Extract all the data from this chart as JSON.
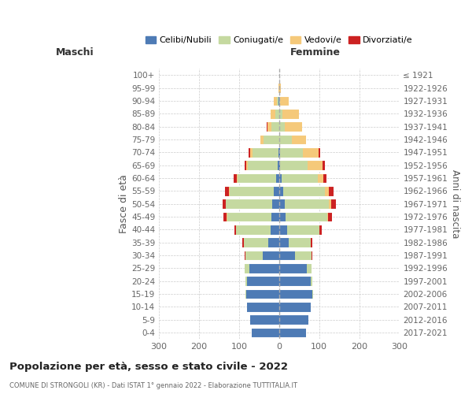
{
  "age_groups": [
    "0-4",
    "5-9",
    "10-14",
    "15-19",
    "20-24",
    "25-29",
    "30-34",
    "35-39",
    "40-44",
    "45-49",
    "50-54",
    "55-59",
    "60-64",
    "65-69",
    "70-74",
    "75-79",
    "80-84",
    "85-89",
    "90-94",
    "95-99",
    "100+"
  ],
  "birth_years": [
    "2017-2021",
    "2012-2016",
    "2007-2011",
    "2002-2006",
    "1997-2001",
    "1992-1996",
    "1987-1991",
    "1982-1986",
    "1977-1981",
    "1972-1976",
    "1967-1971",
    "1962-1966",
    "1957-1961",
    "1952-1956",
    "1947-1951",
    "1942-1946",
    "1937-1941",
    "1932-1936",
    "1927-1931",
    "1922-1926",
    "≤ 1921"
  ],
  "male": {
    "celibi": [
      68,
      72,
      80,
      82,
      80,
      75,
      40,
      28,
      22,
      20,
      18,
      14,
      8,
      4,
      2,
      0,
      0,
      0,
      1,
      0,
      0
    ],
    "coniugati": [
      0,
      0,
      0,
      2,
      5,
      12,
      45,
      60,
      85,
      110,
      115,
      110,
      95,
      75,
      65,
      38,
      20,
      10,
      4,
      0,
      0
    ],
    "vedovi": [
      0,
      0,
      0,
      0,
      0,
      0,
      0,
      0,
      0,
      1,
      1,
      2,
      2,
      3,
      5,
      8,
      10,
      12,
      8,
      2,
      0
    ],
    "divorziati": [
      0,
      0,
      0,
      0,
      0,
      0,
      2,
      4,
      4,
      8,
      8,
      10,
      8,
      5,
      5,
      0,
      2,
      0,
      0,
      0,
      0
    ]
  },
  "female": {
    "nubili": [
      68,
      72,
      78,
      82,
      78,
      70,
      40,
      24,
      20,
      16,
      14,
      10,
      6,
      3,
      2,
      0,
      0,
      0,
      1,
      0,
      0
    ],
    "coniugate": [
      0,
      0,
      0,
      2,
      5,
      10,
      40,
      55,
      80,
      105,
      110,
      105,
      90,
      68,
      58,
      32,
      15,
      8,
      2,
      0,
      0
    ],
    "vedove": [
      0,
      0,
      0,
      0,
      0,
      0,
      0,
      0,
      1,
      2,
      5,
      10,
      15,
      38,
      38,
      35,
      42,
      42,
      20,
      5,
      0
    ],
    "divorziate": [
      0,
      0,
      0,
      0,
      0,
      0,
      2,
      4,
      5,
      8,
      12,
      10,
      8,
      5,
      5,
      0,
      0,
      0,
      0,
      0,
      0
    ]
  },
  "colors": {
    "celibi": "#4e7bb5",
    "coniugati": "#c5d9a0",
    "vedovi": "#f5c97a",
    "divorziati": "#cc2222"
  },
  "xlim": 300,
  "title": "Popolazione per età, sesso e stato civile - 2022",
  "subtitle": "COMUNE DI STRONGOLI (KR) - Dati ISTAT 1° gennaio 2022 - Elaborazione TUTTITALIA.IT",
  "ylabel_left": "Fasce di età",
  "ylabel_right": "Anni di nascita",
  "legend_labels": [
    "Celibi/Nubili",
    "Coniugati/e",
    "Vedovi/e",
    "Divorziati/e"
  ]
}
